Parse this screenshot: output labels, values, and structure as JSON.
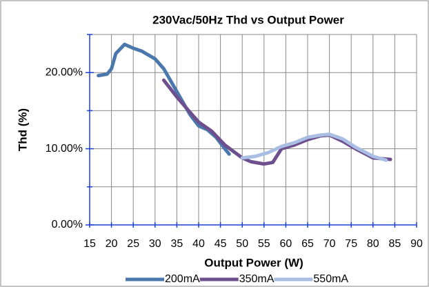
{
  "chart_data": {
    "type": "line",
    "title": "230Vac/50Hz Thd vs Output Power",
    "xlabel": "Output Power (W)",
    "ylabel": "Thd (%)",
    "xlim": [
      15,
      90
    ],
    "xticks": [
      15,
      20,
      25,
      30,
      35,
      40,
      45,
      50,
      55,
      60,
      65,
      70,
      75,
      80,
      85,
      90
    ],
    "ylim": [
      0,
      25
    ],
    "yticks": [
      {
        "value": 0,
        "label": "0.00%"
      },
      {
        "value": 10,
        "label": "10.00%"
      },
      {
        "value": 20,
        "label": "20.00%"
      }
    ],
    "minor_yticks": [
      5,
      15,
      25
    ],
    "grid": true,
    "legend": "bottom",
    "series": [
      {
        "name": "200mA",
        "color": "#4a78ad",
        "x": [
          17,
          19,
          20,
          21,
          23,
          25,
          27,
          30,
          32,
          34,
          36,
          38,
          40,
          42,
          44,
          46,
          47
        ],
        "values": [
          19.6,
          19.8,
          20.5,
          22.5,
          23.7,
          23.2,
          22.8,
          21.8,
          20.5,
          18.5,
          16.5,
          14.5,
          13.0,
          12.5,
          11.5,
          10.0,
          9.3
        ]
      },
      {
        "name": "350mA",
        "color": "#6e4f8e",
        "x": [
          32,
          35,
          38,
          40,
          43,
          46,
          50,
          52,
          55,
          57,
          59,
          62,
          65,
          68,
          70,
          73,
          76,
          80,
          84
        ],
        "values": [
          19.0,
          16.8,
          14.8,
          13.5,
          12.3,
          10.5,
          8.8,
          8.3,
          8.0,
          8.2,
          10.0,
          10.5,
          11.2,
          11.7,
          11.8,
          11.0,
          10.0,
          8.8,
          8.6
        ]
      },
      {
        "name": "550mA",
        "color": "#a9bee2",
        "x": [
          50,
          53,
          56,
          59,
          62,
          65,
          68,
          70,
          73,
          76,
          80,
          83
        ],
        "values": [
          8.8,
          9.0,
          9.5,
          10.3,
          10.8,
          11.5,
          11.8,
          11.9,
          11.3,
          10.2,
          9.0,
          8.5
        ]
      }
    ]
  }
}
